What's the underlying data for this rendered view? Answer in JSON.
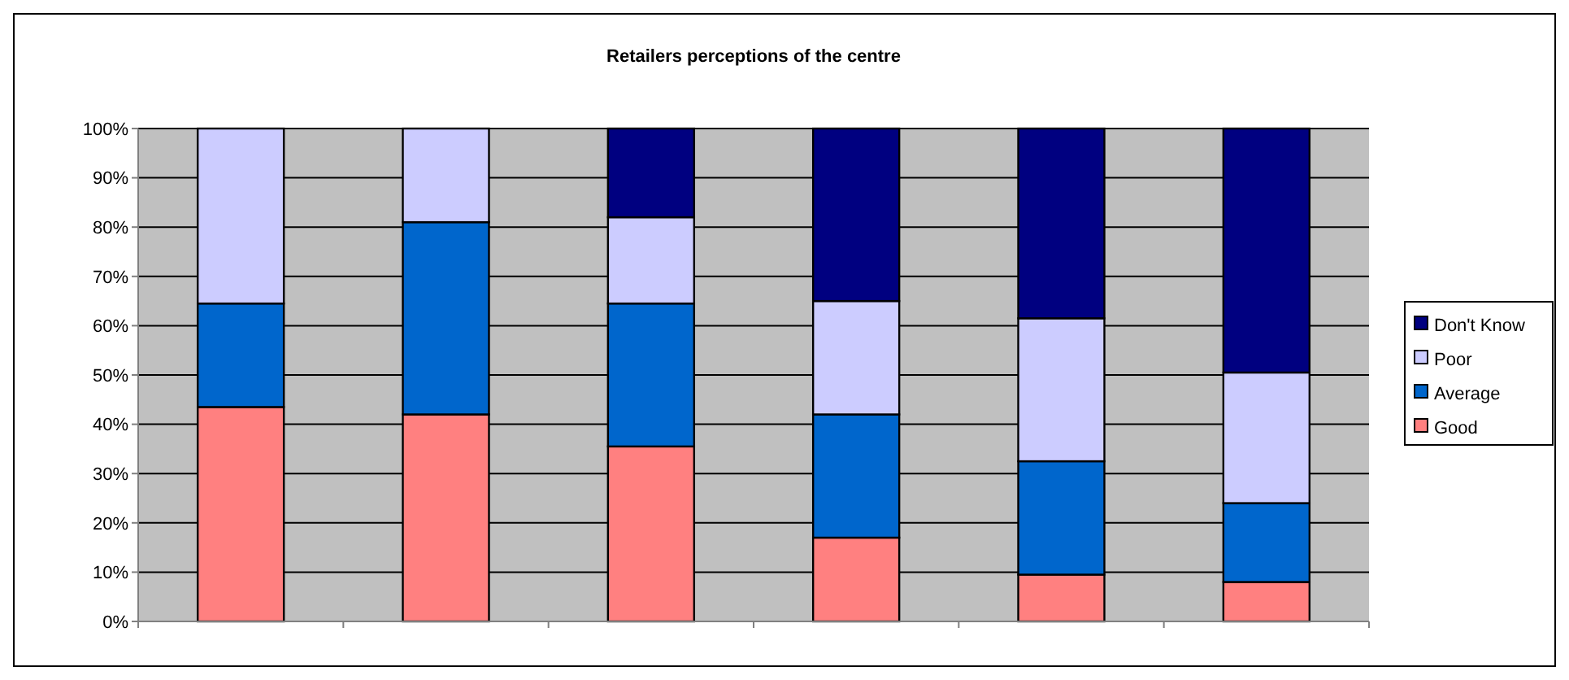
{
  "chart_data": {
    "type": "bar",
    "title": "Retailers perceptions of the centre",
    "stacked": true,
    "categories": [
      null,
      null,
      null,
      null,
      null,
      null
    ],
    "series": [
      {
        "name": "Good",
        "color": "#ff8080",
        "values": [
          43.5,
          42,
          35.5,
          17,
          9.5,
          8
        ]
      },
      {
        "name": "Average",
        "color": "#0066cc",
        "values": [
          21,
          39,
          29,
          25,
          23,
          16
        ]
      },
      {
        "name": "Poor",
        "color": "#ccccff",
        "values": [
          35.5,
          19,
          17.5,
          23,
          29,
          26.5
        ]
      },
      {
        "name": "Don't Know",
        "color": "#000080",
        "values": [
          0,
          0,
          18,
          35,
          38.5,
          49.5
        ]
      }
    ],
    "ylim": [
      0,
      100
    ],
    "yticks": [
      {
        "value": 0,
        "label": "0%"
      },
      {
        "value": 10,
        "label": "10%"
      },
      {
        "value": 20,
        "label": "20%"
      },
      {
        "value": 30,
        "label": "30%"
      },
      {
        "value": 40,
        "label": "40%"
      },
      {
        "value": 50,
        "label": "50%"
      },
      {
        "value": 60,
        "label": "60%"
      },
      {
        "value": 70,
        "label": "70%"
      },
      {
        "value": 80,
        "label": "80%"
      },
      {
        "value": 90,
        "label": "90%"
      },
      {
        "value": 100,
        "label": "100%"
      }
    ],
    "grid": "y",
    "legend": "right"
  }
}
